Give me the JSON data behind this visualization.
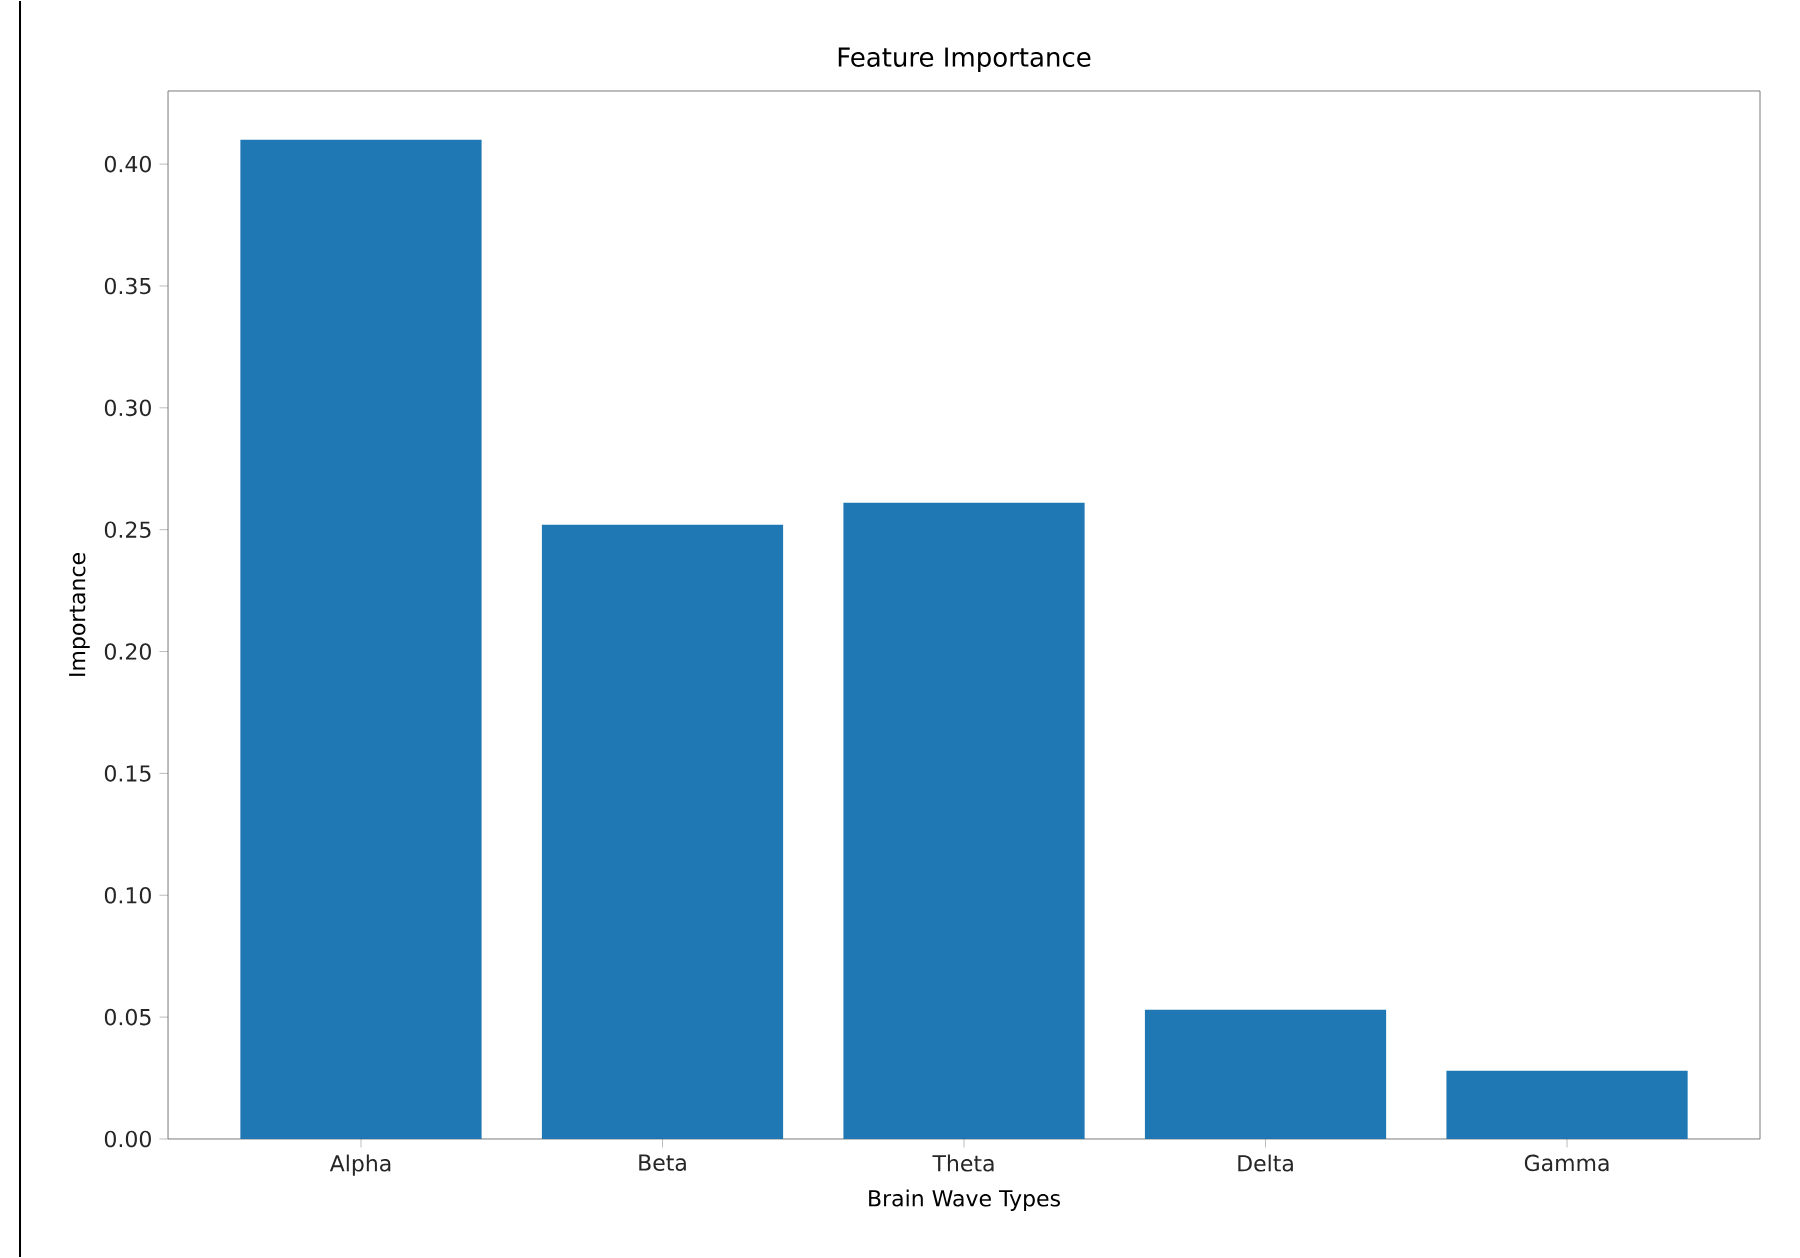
{
  "chart_data": {
    "type": "bar",
    "title": "Feature Importance",
    "xlabel": "Brain Wave Types",
    "ylabel": "Importance",
    "categories": [
      "Alpha",
      "Beta",
      "Theta",
      "Delta",
      "Gamma"
    ],
    "values": [
      0.41,
      0.252,
      0.261,
      0.053,
      0.028
    ],
    "color": "#1f77b4",
    "ylim": [
      0,
      0.43
    ],
    "yticks": [
      {
        "value": 0,
        "label": "0.00"
      },
      {
        "value": 0.05,
        "label": "0.05"
      },
      {
        "value": 0.1,
        "label": "0.10"
      },
      {
        "value": 0.15,
        "label": "0.15"
      },
      {
        "value": 0.2,
        "label": "0.20"
      },
      {
        "value": 0.25,
        "label": "0.25"
      },
      {
        "value": 0.3,
        "label": "0.30"
      },
      {
        "value": 0.35,
        "label": "0.35"
      },
      {
        "value": 0.4,
        "label": "0.40"
      }
    ],
    "grid": false
  }
}
